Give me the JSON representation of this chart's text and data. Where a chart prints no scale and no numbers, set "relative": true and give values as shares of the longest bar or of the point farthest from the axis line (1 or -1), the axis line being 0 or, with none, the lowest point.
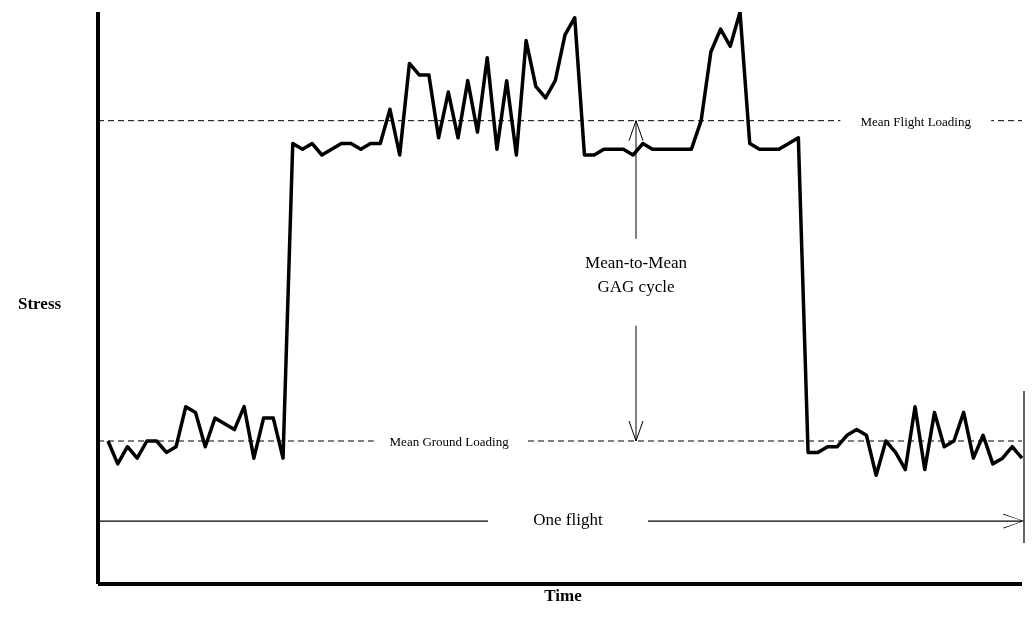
{
  "chart_data": {
    "type": "line",
    "xlabel": "Time",
    "ylabel": "Stress",
    "relative": true,
    "marker": "none",
    "line_style": "solid",
    "categories": [
      null,
      null,
      null,
      null,
      null,
      null,
      null,
      null,
      null,
      null,
      null,
      null,
      null,
      null,
      null,
      null,
      null,
      null,
      null,
      null,
      null,
      null,
      null,
      null,
      null,
      null,
      null,
      null,
      null,
      null,
      null,
      null,
      null,
      null,
      null,
      null,
      null,
      null,
      null,
      null,
      null,
      null,
      null,
      null,
      null,
      null,
      null,
      null,
      null,
      null,
      null,
      null,
      null,
      null,
      null,
      null,
      null,
      null,
      null,
      null,
      null,
      null,
      null,
      null,
      null,
      null,
      null,
      null,
      null,
      null,
      null,
      null,
      null,
      null,
      null,
      null,
      null,
      null,
      null,
      null,
      null,
      null,
      null,
      null,
      null,
      null,
      null,
      null,
      null,
      null,
      null,
      null,
      null,
      null,
      null
    ],
    "series": [
      {
        "color": "#000000",
        "values": [
          0.25,
          0.21,
          0.24,
          0.22,
          0.25,
          0.25,
          0.23,
          0.24,
          0.31,
          0.3,
          0.24,
          0.29,
          0.28,
          0.27,
          0.31,
          0.22,
          0.29,
          0.29,
          0.22,
          0.77,
          0.76,
          0.77,
          0.75,
          0.76,
          0.77,
          0.77,
          0.76,
          0.77,
          0.77,
          0.83,
          0.75,
          0.91,
          0.89,
          0.89,
          0.78,
          0.86,
          0.78,
          0.88,
          0.79,
          0.92,
          0.76,
          0.88,
          0.75,
          0.95,
          0.87,
          0.85,
          0.88,
          0.96,
          0.99,
          0.75,
          0.75,
          0.76,
          0.76,
          0.76,
          0.75,
          0.77,
          0.76,
          0.76,
          0.76,
          0.76,
          0.76,
          0.81,
          0.93,
          0.97,
          0.94,
          1,
          0.77,
          0.76,
          0.76,
          0.76,
          0.77,
          0.78,
          0.23,
          0.23,
          0.24,
          0.24,
          0.26,
          0.27,
          0.26,
          0.19,
          0.25,
          0.23,
          0.2,
          0.31,
          0.2,
          0.3,
          0.24,
          0.25,
          0.3,
          0.22,
          0.26,
          0.21,
          0.22,
          0.24,
          0.22
        ]
      }
    ],
    "ref_lines": [
      {
        "axis": "y",
        "value": 0.81,
        "label": "Mean Flight Loading",
        "color": "#000000",
        "line_style": "dashed"
      },
      {
        "axis": "y",
        "value": 0.25,
        "label": "Mean Ground Loading",
        "color": "#000000",
        "line_style": "dashed"
      }
    ],
    "annotations": [
      "Mean-to-Mean GAG cycle",
      "One flight"
    ]
  }
}
